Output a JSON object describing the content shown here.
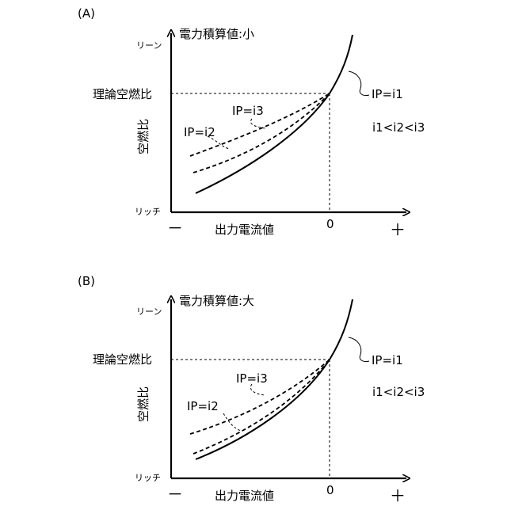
{
  "panels": [
    {
      "label": "(A)",
      "condition": "電力積算値:小",
      "y_top_label": "リーン",
      "y_bottom_label": "リッチ",
      "y_axis_label": "空燃比",
      "y_ref_label": "理論空燃比",
      "x_axis_label": "出力電流値",
      "x_minus": "－",
      "x_plus": "＋",
      "x_zero": "0",
      "curve_labels": [
        "IP=i1",
        "IP=i2",
        "IP=i3"
      ],
      "relation": "i1<i2<i3"
    },
    {
      "label": "(B)",
      "condition": "電力積算値:大",
      "y_top_label": "リーン",
      "y_bottom_label": "リッチ",
      "y_axis_label": "空燃比",
      "y_ref_label": "理論空燃比",
      "x_axis_label": "出力電流値",
      "x_minus": "－",
      "x_plus": "＋",
      "x_zero": "0",
      "curve_labels": [
        "IP=i1",
        "IP=i2",
        "IP=i3"
      ],
      "relation": "i1<i2<i3"
    }
  ]
}
